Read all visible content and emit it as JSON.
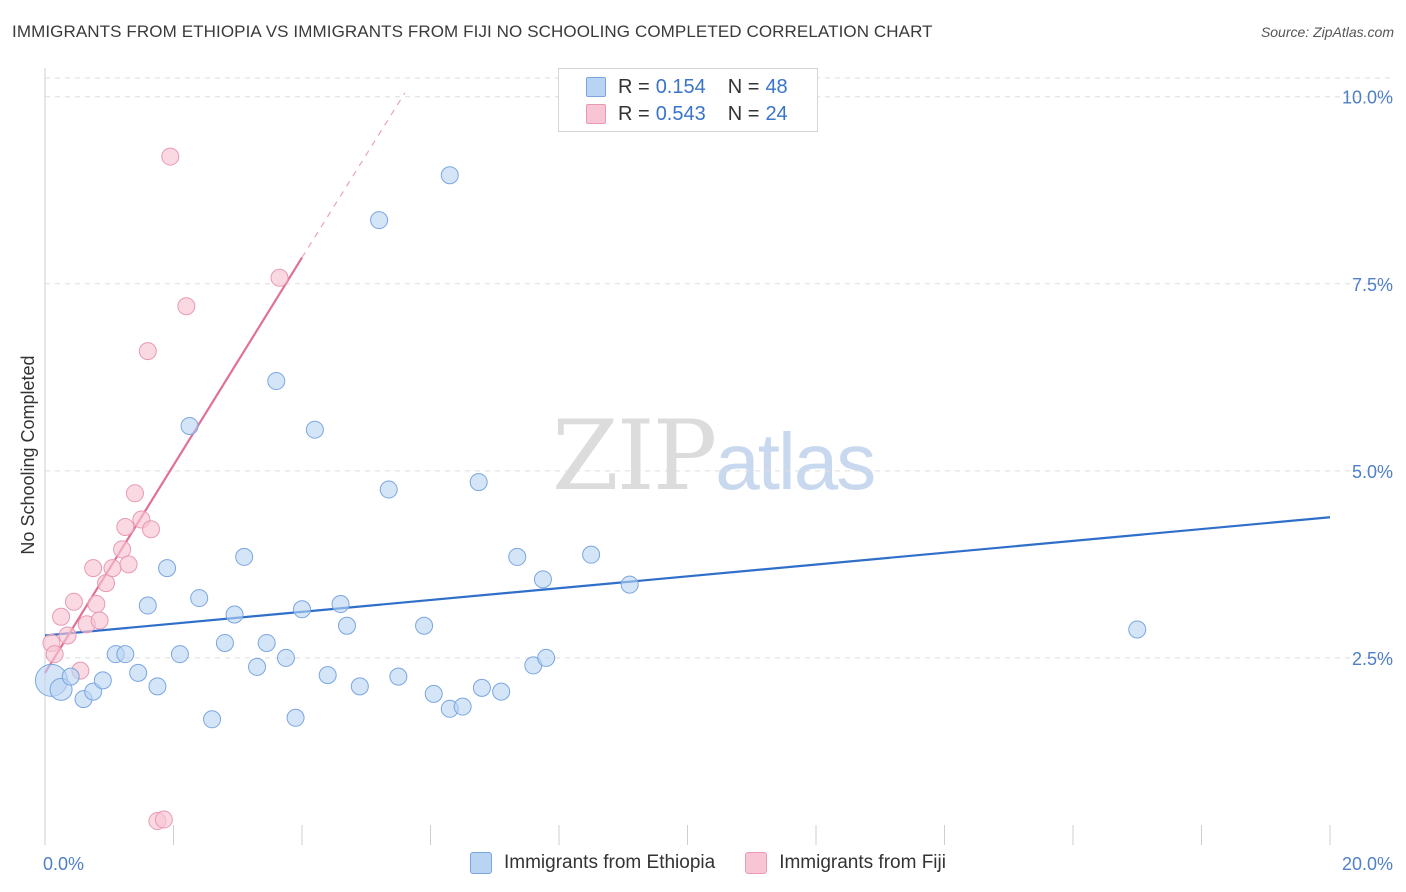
{
  "title": "IMMIGRANTS FROM ETHIOPIA VS IMMIGRANTS FROM FIJI NO SCHOOLING COMPLETED CORRELATION CHART",
  "source": "Source: ZipAtlas.com",
  "watermark": {
    "zip": "ZIP",
    "atlas": "atlas"
  },
  "legend": {
    "rows": [
      {
        "r_label": "R =",
        "r_value": "0.154",
        "n_label": "N =",
        "n_value": "48"
      },
      {
        "r_label": "R =",
        "r_value": "0.543",
        "n_label": "N =",
        "n_value": "24"
      }
    ]
  },
  "colors": {
    "ethiopia_fill": "#b9d3f3",
    "ethiopia_stroke": "#7aa6e0",
    "ethiopia_line": "#2f6fca",
    "fiji_fill": "#f7c5d4",
    "fiji_stroke": "#e99ab3",
    "fiji_line": "#e07098",
    "grid": "#dddddd",
    "tick_text": "#4f7fc8"
  },
  "chart_data": {
    "type": "scatter",
    "title": "IMMIGRANTS FROM ETHIOPIA VS IMMIGRANTS FROM FIJI NO SCHOOLING COMPLETED CORRELATION CHART",
    "xlabel": "",
    "ylabel": "No Schooling Completed",
    "xlim": [
      0,
      20
    ],
    "ylim": [
      0,
      10.25
    ],
    "x_ticks": [
      0,
      20
    ],
    "x_tick_labels": [
      "0.0%",
      "20.0%"
    ],
    "y_ticks": [
      2.5,
      5.0,
      7.5,
      10.0
    ],
    "y_tick_labels": [
      "2.5%",
      "5.0%",
      "7.5%",
      "10.0%"
    ],
    "grid": true,
    "legend_position": "bottom-center",
    "series": [
      {
        "name": "Immigrants from Ethiopia",
        "r": 0.154,
        "n": 48,
        "points": [
          [
            0.1,
            2.2
          ],
          [
            0.25,
            2.08
          ],
          [
            0.4,
            2.25
          ],
          [
            0.6,
            1.95
          ],
          [
            0.75,
            2.05
          ],
          [
            0.9,
            2.2
          ],
          [
            1.1,
            2.55
          ],
          [
            1.25,
            2.55
          ],
          [
            1.45,
            2.3
          ],
          [
            1.6,
            3.2
          ],
          [
            1.75,
            2.12
          ],
          [
            1.9,
            3.7
          ],
          [
            2.1,
            2.55
          ],
          [
            2.25,
            5.6
          ],
          [
            2.4,
            3.3
          ],
          [
            2.6,
            1.68
          ],
          [
            2.8,
            2.7
          ],
          [
            2.95,
            3.08
          ],
          [
            3.1,
            3.85
          ],
          [
            3.3,
            2.38
          ],
          [
            3.45,
            2.7
          ],
          [
            3.6,
            6.2
          ],
          [
            3.75,
            2.5
          ],
          [
            3.9,
            1.7
          ],
          [
            4.0,
            3.15
          ],
          [
            4.2,
            5.55
          ],
          [
            4.4,
            2.27
          ],
          [
            4.6,
            3.22
          ],
          [
            4.7,
            2.93
          ],
          [
            4.9,
            2.12
          ],
          [
            5.2,
            8.35
          ],
          [
            5.35,
            4.75
          ],
          [
            5.5,
            2.25
          ],
          [
            5.9,
            2.93
          ],
          [
            6.05,
            2.02
          ],
          [
            6.3,
            8.95
          ],
          [
            6.3,
            1.82
          ],
          [
            6.5,
            1.85
          ],
          [
            6.75,
            4.85
          ],
          [
            6.8,
            2.1
          ],
          [
            7.1,
            2.05
          ],
          [
            7.35,
            3.85
          ],
          [
            7.6,
            2.4
          ],
          [
            7.75,
            3.55
          ],
          [
            7.8,
            2.5
          ],
          [
            8.5,
            3.88
          ],
          [
            9.1,
            3.48
          ],
          [
            17.0,
            2.88
          ]
        ],
        "trend": {
          "x": [
            0,
            20
          ],
          "y": [
            2.8,
            4.38
          ]
        }
      },
      {
        "name": "Immigrants from Fiji",
        "r": 0.543,
        "n": 24,
        "points": [
          [
            0.1,
            2.7
          ],
          [
            0.15,
            2.55
          ],
          [
            0.25,
            3.05
          ],
          [
            0.35,
            2.8
          ],
          [
            0.45,
            3.25
          ],
          [
            0.55,
            2.33
          ],
          [
            0.65,
            2.95
          ],
          [
            0.75,
            3.7
          ],
          [
            0.8,
            3.22
          ],
          [
            0.85,
            3.0
          ],
          [
            0.95,
            3.5
          ],
          [
            1.05,
            3.7
          ],
          [
            1.2,
            3.95
          ],
          [
            1.25,
            4.25
          ],
          [
            1.3,
            3.75
          ],
          [
            1.4,
            4.7
          ],
          [
            1.5,
            4.35
          ],
          [
            1.6,
            6.6
          ],
          [
            1.65,
            4.22
          ],
          [
            1.75,
            0.32
          ],
          [
            1.85,
            0.34
          ],
          [
            1.95,
            9.2
          ],
          [
            2.2,
            7.2
          ],
          [
            3.65,
            7.58
          ]
        ],
        "trend": {
          "x": [
            0,
            4.0
          ],
          "y": [
            2.3,
            7.85
          ]
        },
        "trend_extension": {
          "x": [
            4.0,
            5.6
          ],
          "y": [
            7.85,
            10.05
          ]
        }
      }
    ]
  },
  "bottom_legend": [
    {
      "label": "Immigrants from Ethiopia"
    },
    {
      "label": "Immigrants from Fiji"
    }
  ]
}
